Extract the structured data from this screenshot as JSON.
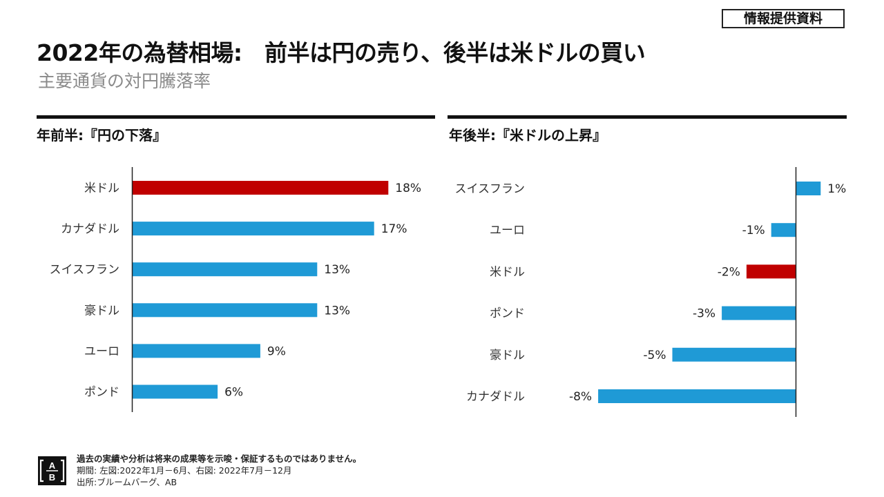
{
  "badge": "情報提供資料",
  "title": "2022年の為替相場:　前半は円の売り、後半は米ドルの買い",
  "subtitle": "主要通貨の対円騰落率",
  "colors": {
    "highlight": "#C00000",
    "default": "#1F9AD6",
    "axis": "#222222",
    "text": "#111111",
    "subtitle": "#8A8A8A"
  },
  "chart_data": [
    {
      "type": "bar",
      "orientation": "horizontal",
      "title": "年前半:『円の下落』",
      "categories": [
        "米ドル",
        "カナダドル",
        "スイスフラン",
        "豪ドル",
        "ユーロ",
        "ポンド"
      ],
      "values": [
        18,
        17,
        13,
        13,
        9,
        6
      ],
      "value_labels": [
        "18%",
        "17%",
        "13%",
        "13%",
        "9%",
        "6%"
      ],
      "highlight": [
        "米ドル"
      ],
      "unit": "%",
      "xlim": [
        0,
        20
      ],
      "grid": false,
      "legend": "none",
      "xlabel": "",
      "ylabel": ""
    },
    {
      "type": "bar",
      "orientation": "horizontal",
      "title": "年後半:『米ドルの上昇』",
      "categories": [
        "スイスフラン",
        "ユーロ",
        "米ドル",
        "ポンド",
        "豪ドル",
        "カナダドル"
      ],
      "values": [
        1,
        -1,
        -2,
        -3,
        -5,
        -8
      ],
      "value_labels": [
        "1%",
        "-1%",
        "-2%",
        "-3%",
        "-5%",
        "-8%"
      ],
      "highlight": [
        "米ドル"
      ],
      "unit": "%",
      "xlim": [
        -9,
        2
      ],
      "grid": false,
      "legend": "none",
      "xlabel": "",
      "ylabel": ""
    }
  ],
  "footer": {
    "logo_top": "A",
    "logo_bottom": "B",
    "disclaimer": "過去の実績や分析は将来の成果等を示唆・保証するものではありません。",
    "period": "期間: 左図:2022年1月－6月、右図: 2022年7月－12月",
    "source": "出所:ブルームバーグ、AB"
  }
}
